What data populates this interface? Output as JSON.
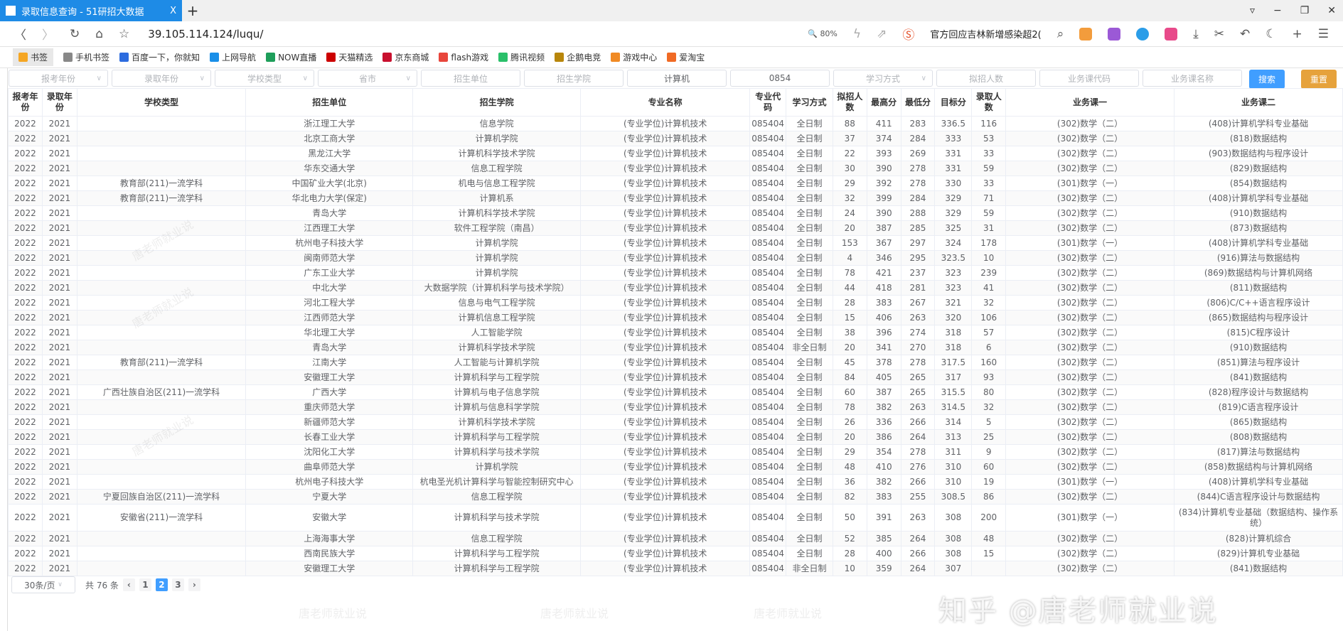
{
  "browser": {
    "tab_title": "录取信息查询 - 51研招大数据",
    "tab_close": "X",
    "new_tab": "+",
    "url": "39.105.114.124/luqu/",
    "zoom": "80%",
    "news": "官方回应吉林新增感染超2(",
    "window_controls": [
      "▿",
      "−",
      "❐",
      "✕"
    ],
    "bookmarks": [
      "书签",
      "手机书签",
      "百度一下，你就知",
      "上网导航",
      "NOW直播",
      "天猫精选",
      "京东商城",
      "flash游戏",
      "腾讯视频",
      "企鹅电竞",
      "游戏中心",
      "爱淘宝"
    ]
  },
  "filters": [
    {
      "label": "报考年份",
      "select": true
    },
    {
      "label": "录取年份",
      "select": true
    },
    {
      "label": "学校类型",
      "select": true
    },
    {
      "label": "省市",
      "select": true
    },
    {
      "label": "招生单位"
    },
    {
      "label": "招生学院"
    },
    {
      "value": "计算机"
    },
    {
      "value": "0854"
    },
    {
      "label": "学习方式",
      "select": true
    },
    {
      "label": "拟招人数"
    },
    {
      "label": "业务课代码"
    },
    {
      "label": "业务课名称"
    }
  ],
  "buttons": {
    "search": "搜索",
    "reset": "重置"
  },
  "table": {
    "headers": [
      "报考年份",
      "录取年份",
      "学校类型",
      "招生单位",
      "招生学院",
      "专业名称",
      "专业代码",
      "学习方式",
      "拟招人数",
      "最高分",
      "最低分",
      "目标分",
      "录取人数",
      "业务课一",
      "业务课二"
    ],
    "rows": [
      [
        "2022",
        "2021",
        "",
        "浙江理工大学",
        "信息学院",
        "(专业学位)计算机技术",
        "085404",
        "全日制",
        "88",
        "411",
        "283",
        "336.5",
        "116",
        "(302)数学（二）",
        "(408)计算机学科专业基础"
      ],
      [
        "2022",
        "2021",
        "",
        "北京工商大学",
        "计算机学院",
        "(专业学位)计算机技术",
        "085404",
        "全日制",
        "37",
        "374",
        "284",
        "333",
        "53",
        "(302)数学（二）",
        "(818)数据结构"
      ],
      [
        "2022",
        "2021",
        "",
        "黑龙江大学",
        "计算机科学技术学院",
        "(专业学位)计算机技术",
        "085404",
        "全日制",
        "22",
        "393",
        "269",
        "331",
        "33",
        "(302)数学（二）",
        "(903)数据结构与程序设计"
      ],
      [
        "2022",
        "2021",
        "",
        "华东交通大学",
        "信息工程学院",
        "(专业学位)计算机技术",
        "085404",
        "全日制",
        "30",
        "390",
        "278",
        "331",
        "59",
        "(302)数学（二）",
        "(829)数据结构"
      ],
      [
        "2022",
        "2021",
        "教育部(211)一流学科",
        "中国矿业大学(北京)",
        "机电与信息工程学院",
        "(专业学位)计算机技术",
        "085404",
        "全日制",
        "29",
        "392",
        "278",
        "330",
        "33",
        "(301)数学（一）",
        "(854)数据结构"
      ],
      [
        "2022",
        "2021",
        "教育部(211)一流学科",
        "华北电力大学(保定)",
        "计算机系",
        "(专业学位)计算机技术",
        "085404",
        "全日制",
        "32",
        "399",
        "284",
        "329",
        "71",
        "(302)数学（二）",
        "(408)计算机学科专业基础"
      ],
      [
        "2022",
        "2021",
        "",
        "青岛大学",
        "计算机科学技术学院",
        "(专业学位)计算机技术",
        "085404",
        "全日制",
        "24",
        "390",
        "288",
        "329",
        "59",
        "(302)数学（二）",
        "(910)数据结构"
      ],
      [
        "2022",
        "2021",
        "",
        "江西理工大学",
        "软件工程学院（南昌）",
        "(专业学位)计算机技术",
        "085404",
        "全日制",
        "20",
        "387",
        "285",
        "325",
        "31",
        "(302)数学（二）",
        "(873)数据结构"
      ],
      [
        "2022",
        "2021",
        "",
        "杭州电子科技大学",
        "计算机学院",
        "(专业学位)计算机技术",
        "085404",
        "全日制",
        "153",
        "367",
        "297",
        "324",
        "178",
        "(301)数学（一）",
        "(408)计算机学科专业基础"
      ],
      [
        "2022",
        "2021",
        "",
        "闽南师范大学",
        "计算机学院",
        "(专业学位)计算机技术",
        "085404",
        "全日制",
        "4",
        "346",
        "295",
        "323.5",
        "10",
        "(302)数学（二）",
        "(916)算法与数据结构"
      ],
      [
        "2022",
        "2021",
        "",
        "广东工业大学",
        "计算机学院",
        "(专业学位)计算机技术",
        "085404",
        "全日制",
        "78",
        "421",
        "237",
        "323",
        "239",
        "(302)数学（二）",
        "(869)数据结构与计算机网络"
      ],
      [
        "2022",
        "2021",
        "",
        "中北大学",
        "大数据学院（计算机科学与技术学院）",
        "(专业学位)计算机技术",
        "085404",
        "全日制",
        "44",
        "418",
        "281",
        "323",
        "41",
        "(302)数学（二）",
        "(811)数据结构"
      ],
      [
        "2022",
        "2021",
        "",
        "河北工程大学",
        "信息与电气工程学院",
        "(专业学位)计算机技术",
        "085404",
        "全日制",
        "28",
        "383",
        "267",
        "321",
        "32",
        "(302)数学（二）",
        "(806)C/C++语言程序设计"
      ],
      [
        "2022",
        "2021",
        "",
        "江西师范大学",
        "计算机信息工程学院",
        "(专业学位)计算机技术",
        "085404",
        "全日制",
        "15",
        "406",
        "263",
        "320",
        "106",
        "(302)数学（二）",
        "(865)数据结构与程序设计"
      ],
      [
        "2022",
        "2021",
        "",
        "华北理工大学",
        "人工智能学院",
        "(专业学位)计算机技术",
        "085404",
        "全日制",
        "38",
        "396",
        "274",
        "318",
        "57",
        "(302)数学（二）",
        "(815)C程序设计"
      ],
      [
        "2022",
        "2021",
        "",
        "青岛大学",
        "计算机科学技术学院",
        "(专业学位)计算机技术",
        "085404",
        "非全日制",
        "20",
        "341",
        "270",
        "318",
        "6",
        "(302)数学（二）",
        "(910)数据结构"
      ],
      [
        "2022",
        "2021",
        "教育部(211)一流学科",
        "江南大学",
        "人工智能与计算机学院",
        "(专业学位)计算机技术",
        "085404",
        "全日制",
        "45",
        "378",
        "278",
        "317.5",
        "160",
        "(302)数学（二）",
        "(851)算法与程序设计"
      ],
      [
        "2022",
        "2021",
        "",
        "安徽理工大学",
        "计算机科学与工程学院",
        "(专业学位)计算机技术",
        "085404",
        "全日制",
        "84",
        "405",
        "265",
        "317",
        "93",
        "(302)数学（二）",
        "(841)数据结构"
      ],
      [
        "2022",
        "2021",
        "广西壮族自治区(211)一流学科",
        "广西大学",
        "计算机与电子信息学院",
        "(专业学位)计算机技术",
        "085404",
        "全日制",
        "60",
        "387",
        "265",
        "315.5",
        "80",
        "(302)数学（二）",
        "(828)程序设计与数据结构"
      ],
      [
        "2022",
        "2021",
        "",
        "重庆师范大学",
        "计算机与信息科学学院",
        "(专业学位)计算机技术",
        "085404",
        "全日制",
        "78",
        "382",
        "263",
        "314.5",
        "32",
        "(302)数学（二）",
        "(819)C语言程序设计"
      ],
      [
        "2022",
        "2021",
        "",
        "新疆师范大学",
        "计算机科学技术学院",
        "(专业学位)计算机技术",
        "085404",
        "全日制",
        "26",
        "336",
        "266",
        "314",
        "5",
        "(302)数学（二）",
        "(865)数据结构"
      ],
      [
        "2022",
        "2021",
        "",
        "长春工业大学",
        "计算机科学与工程学院",
        "(专业学位)计算机技术",
        "085404",
        "全日制",
        "20",
        "386",
        "264",
        "313",
        "25",
        "(302)数学（二）",
        "(808)数据结构"
      ],
      [
        "2022",
        "2021",
        "",
        "沈阳化工大学",
        "计算机科学与技术学院",
        "(专业学位)计算机技术",
        "085404",
        "全日制",
        "29",
        "354",
        "278",
        "311",
        "9",
        "(302)数学（二）",
        "(817)算法与数据结构"
      ],
      [
        "2022",
        "2021",
        "",
        "曲阜师范大学",
        "计算机学院",
        "(专业学位)计算机技术",
        "085404",
        "全日制",
        "48",
        "410",
        "276",
        "310",
        "60",
        "(302)数学（二）",
        "(858)数据结构与计算机网络"
      ],
      [
        "2022",
        "2021",
        "",
        "杭州电子科技大学",
        "杭电圣光机计算科学与智能控制研究中心",
        "(专业学位)计算机技术",
        "085404",
        "全日制",
        "36",
        "382",
        "266",
        "310",
        "19",
        "(301)数学（一）",
        "(408)计算机学科专业基础"
      ],
      [
        "2022",
        "2021",
        "宁夏回族自治区(211)一流学科",
        "宁夏大学",
        "信息工程学院",
        "(专业学位)计算机技术",
        "085404",
        "全日制",
        "82",
        "383",
        "255",
        "308.5",
        "86",
        "(302)数学（二）",
        "(844)C语言程序设计与数据结构"
      ],
      [
        "2022",
        "2021",
        "安徽省(211)一流学科",
        "安徽大学",
        "计算机科学与技术学院",
        "(专业学位)计算机技术",
        "085404",
        "全日制",
        "50",
        "391",
        "263",
        "308",
        "200",
        "(301)数学（一）",
        "(834)计算机专业基础（数据结构、操作系统）"
      ],
      [
        "2022",
        "2021",
        "",
        "上海海事大学",
        "信息工程学院",
        "(专业学位)计算机技术",
        "085404",
        "全日制",
        "52",
        "385",
        "264",
        "308",
        "48",
        "(302)数学（二）",
        "(828)计算机综合"
      ],
      [
        "2022",
        "2021",
        "",
        "西南民族大学",
        "计算机科学与工程学院",
        "(专业学位)计算机技术",
        "085404",
        "全日制",
        "28",
        "400",
        "266",
        "308",
        "15",
        "(302)数学（二）",
        "(829)计算机专业基础"
      ],
      [
        "2022",
        "2021",
        "",
        "安徽理工大学",
        "计算机科学与工程学院",
        "(专业学位)计算机技术",
        "085404",
        "非全日制",
        "10",
        "359",
        "264",
        "307",
        "",
        "(302)数学（二）",
        "(841)数据结构"
      ]
    ]
  },
  "pagination": {
    "page_size": "30条/页",
    "total": "共 76 条",
    "pages": [
      "1",
      "2",
      "3"
    ],
    "current": "2",
    "prev": "‹",
    "next": "›"
  },
  "watermark": "唐老师就业说",
  "overlay_watermark": "知乎 @唐老师就业说",
  "colors": {
    "tab": "#1e8be6",
    "search": "#409eff",
    "reset": "#e6a23c"
  }
}
